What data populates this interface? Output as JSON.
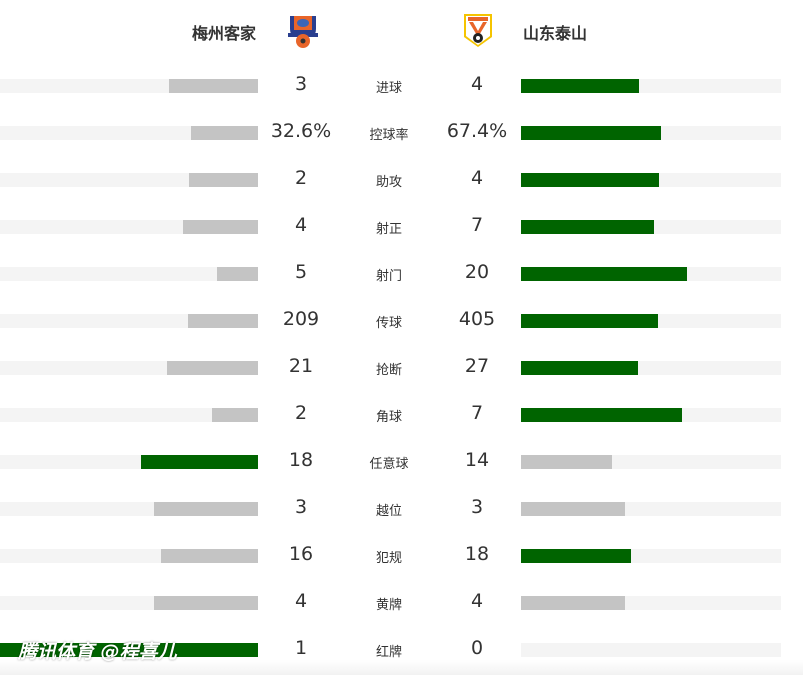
{
  "header": {
    "home_team": "梅州客家",
    "away_team": "山东泰山",
    "home_logo_icon": "meizhou-hakka-crest",
    "away_logo_icon": "shandong-taishan-crest"
  },
  "colors": {
    "leader": "#006400",
    "other": "#c4c4c4",
    "track": "#f4f4f4"
  },
  "stats": [
    {
      "label": "进球",
      "home": "3",
      "away": "4",
      "home_fill": 34.5,
      "away_fill": 45.4,
      "leader": "away"
    },
    {
      "label": "控球率",
      "home": "32.6%",
      "away": "67.4%",
      "home_fill": 26,
      "away_fill": 54,
      "leader": "away"
    },
    {
      "label": "助攻",
      "home": "2",
      "away": "4",
      "home_fill": 26.7,
      "away_fill": 53,
      "leader": "away"
    },
    {
      "label": "射正",
      "home": "4",
      "away": "7",
      "home_fill": 29,
      "away_fill": 51,
      "leader": "away"
    },
    {
      "label": "射门",
      "home": "5",
      "away": "20",
      "home_fill": 16,
      "away_fill": 64,
      "leader": "away"
    },
    {
      "label": "传球",
      "home": "209",
      "away": "405",
      "home_fill": 27,
      "away_fill": 52.7,
      "leader": "away"
    },
    {
      "label": "抢断",
      "home": "21",
      "away": "27",
      "home_fill": 35.3,
      "away_fill": 45,
      "leader": "away"
    },
    {
      "label": "角球",
      "home": "2",
      "away": "7",
      "home_fill": 17.8,
      "away_fill": 62,
      "leader": "away"
    },
    {
      "label": "任意球",
      "home": "18",
      "away": "14",
      "home_fill": 45.3,
      "away_fill": 35,
      "leader": "home"
    },
    {
      "label": "越位",
      "home": "3",
      "away": "3",
      "home_fill": 40.3,
      "away_fill": 40,
      "leader": "none"
    },
    {
      "label": "犯规",
      "home": "16",
      "away": "18",
      "home_fill": 37.6,
      "away_fill": 42.3,
      "leader": "away"
    },
    {
      "label": "黄牌",
      "home": "4",
      "away": "4",
      "home_fill": 40.3,
      "away_fill": 40,
      "leader": "none"
    },
    {
      "label": "红牌",
      "home": "1",
      "away": "0",
      "home_fill": 100,
      "away_fill": 0,
      "leader": "home"
    }
  ],
  "watermark": "腾讯体育 @程喜儿"
}
